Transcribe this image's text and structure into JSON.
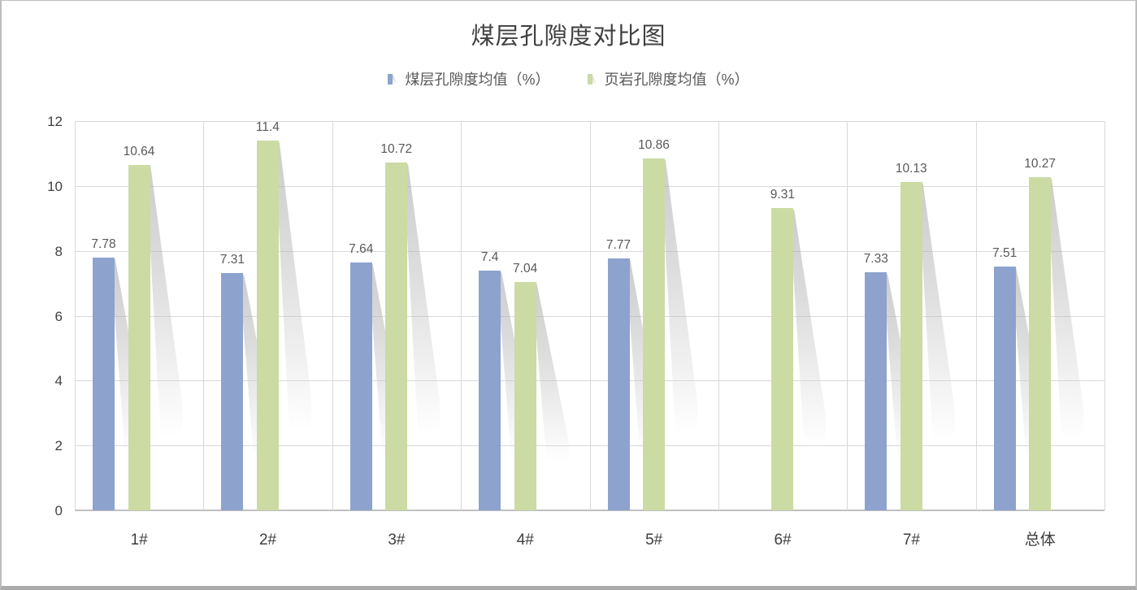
{
  "window": {
    "background": "#ffffff",
    "border_color": "#ababab"
  },
  "chart_data": {
    "type": "bar",
    "title": "煤层孔隙度对比图",
    "categories": [
      "1#",
      "2#",
      "3#",
      "4#",
      "5#",
      "6#",
      "7#",
      "总体"
    ],
    "series": [
      {
        "name": "煤层孔隙度均值（%）",
        "color": "#8da3ce",
        "values": [
          7.78,
          7.31,
          7.64,
          7.4,
          7.77,
          null,
          7.33,
          7.51
        ]
      },
      {
        "name": "页岩孔隙度均值（%）",
        "color": "#cbdba3",
        "values": [
          10.64,
          11.4,
          10.72,
          7.04,
          10.86,
          9.31,
          10.13,
          10.27
        ]
      }
    ],
    "xlabel": "",
    "ylabel": "",
    "ylim": [
      0,
      12
    ],
    "yticks": [
      0,
      2,
      4,
      6,
      8,
      10,
      12
    ],
    "grid": true,
    "vertical_category_gridlines": true,
    "legend_position": "top",
    "data_labels": true,
    "bar_shadow_effect": "perspective-lower-right"
  },
  "colors": {
    "gridline": "#d9d9d9",
    "axis_line": "#c0c0c0",
    "tick_label": "#404040",
    "value_label": "#595959",
    "title": "#404040",
    "shadow": "#d2d2d2"
  }
}
